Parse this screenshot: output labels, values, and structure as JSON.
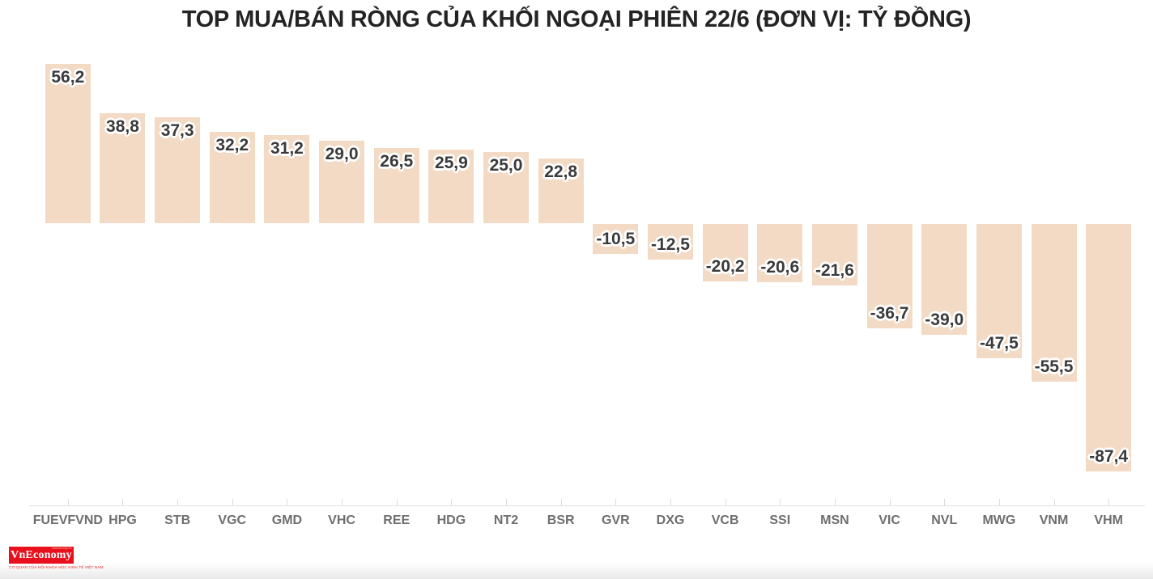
{
  "chart_data": {
    "type": "bar",
    "title": "TOP MUA/BÁN RÒNG CỦA KHỐI NGOẠI PHIÊN 22/6 (ĐƠN VỊ: TỶ ĐỒNG)",
    "categories": [
      "FUEVFVND",
      "HPG",
      "STB",
      "VGC",
      "GMD",
      "VHC",
      "REE",
      "HDG",
      "NT2",
      "BSR",
      "GVR",
      "DXG",
      "VCB",
      "SSI",
      "MSN",
      "VIC",
      "NVL",
      "MWG",
      "VNM",
      "VHM"
    ],
    "values": [
      56.2,
      38.8,
      37.3,
      32.2,
      31.2,
      29.0,
      26.5,
      25.9,
      25.0,
      22.8,
      -10.5,
      -12.5,
      -20.2,
      -20.6,
      -21.6,
      -36.7,
      -39.0,
      -47.5,
      -55.5,
      -87.4
    ],
    "value_labels": [
      "56,2",
      "38,8",
      "37,3",
      "32,2",
      "31,2",
      "29,0",
      "26,5",
      "25,9",
      "25,0",
      "22,8",
      "-10,5",
      "-12,5",
      "-20,2",
      "-20,6",
      "-21,6",
      "-36,7",
      "-39,0",
      "-47,5",
      "-55,5",
      "-87,4"
    ],
    "xlabel": "",
    "ylabel": "",
    "ylim": [
      -90,
      60
    ],
    "grid": false,
    "legend": "none",
    "bar_color": "#f3dac4",
    "value_label_color": "#3a3a3a",
    "axis_label_color": "#6e6e6e",
    "axis_line_color": "#e1e1e1",
    "tick_color": "#dcdcdc"
  },
  "logo": {
    "brand": "VnEconomy",
    "small_text": "vneconomy.vn",
    "tagline": "CƠ QUAN CỦA HỘI KHOA HỌC KINH TẾ VIỆT NAM",
    "box_color": "#e8101c",
    "tagline_color": "#e8413f"
  }
}
